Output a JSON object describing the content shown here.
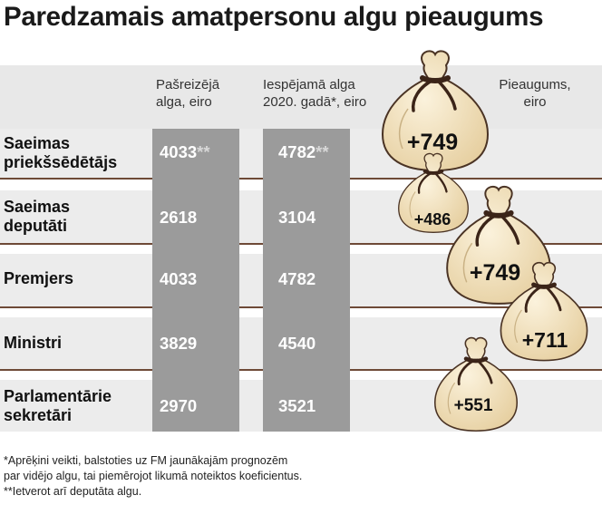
{
  "title": "Paredzamais amatpersonu algu pieaugums",
  "colors": {
    "row_bg": "#ececec",
    "column_bg": "#9b9b9b",
    "bag": "#f1e2c3",
    "rope": "#3b2418",
    "divider": "#6e4a37"
  },
  "headers": {
    "current": [
      "Pašreizējā",
      "alga, eiro"
    ],
    "future": [
      "Iespējamā alga",
      "2020. gadā*, eiro"
    ],
    "increase": [
      "Pieaugums,",
      "eiro"
    ]
  },
  "chart_data": {
    "type": "table",
    "title": "Paredzamais amatpersonu algu pieaugums",
    "columns": [
      "Pašreizējā alga, eiro",
      "Iespējamā alga 2020. gadā*, eiro",
      "Pieaugums, eiro"
    ],
    "rows": [
      {
        "label": [
          "Saeimas",
          "priekšsēdētājs"
        ],
        "current": "4033",
        "current_mark": "**",
        "future": "4782",
        "future_mark": "**",
        "increase": "+749"
      },
      {
        "label": [
          "Saeimas",
          "deputāti"
        ],
        "current": "2618",
        "current_mark": "",
        "future": "3104",
        "future_mark": "",
        "increase": "+486"
      },
      {
        "label": [
          "Premjers"
        ],
        "current": "4033",
        "current_mark": "",
        "future": "4782",
        "future_mark": "",
        "increase": "+749"
      },
      {
        "label": [
          "Ministri"
        ],
        "current": "3829",
        "current_mark": "",
        "future": "4540",
        "future_mark": "",
        "increase": "+711"
      },
      {
        "label": [
          "Parlamentārie",
          "sekretāri"
        ],
        "current": "2970",
        "current_mark": "",
        "future": "3521",
        "future_mark": "",
        "increase": "+551"
      }
    ]
  },
  "footnotes": [
    "*Aprēķini veikti, balstoties uz FM jaunākajām prognozēm",
    "par vidējo algu, tai piemērojot likumā noteiktos koeficientus.",
    "**Ietverot arī deputāta algu."
  ]
}
